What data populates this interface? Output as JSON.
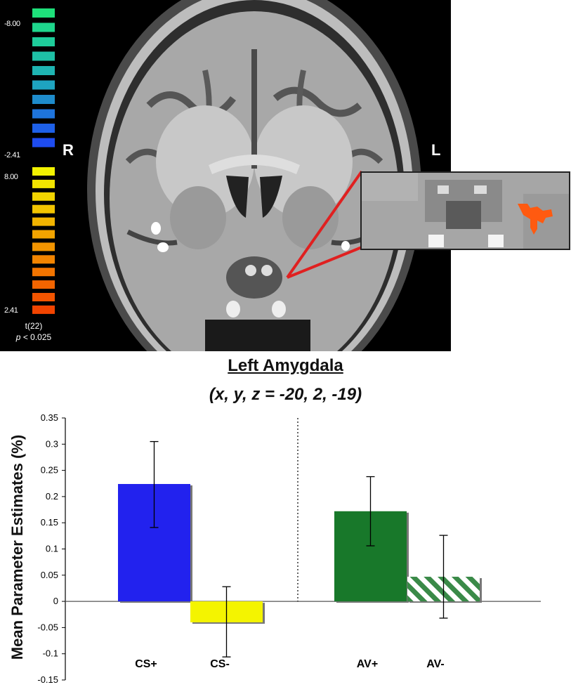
{
  "figure": {
    "colorbar": {
      "negative_max_label": "-8.00",
      "negative_threshold_label": "-2.41",
      "positive_max_label": "8.00",
      "positive_threshold_label": "2.41",
      "stat_label": "t(22)",
      "p_symbol": "p",
      "p_value_text": " < 0.025",
      "negative_colors": [
        "#1ee07a",
        "#1ed68c",
        "#1ecc9a",
        "#1ec0a6",
        "#1eb4b2",
        "#1ea4c0",
        "#1e8ccc",
        "#1e74dc",
        "#1e60e8",
        "#1e4cf0"
      ],
      "positive_colors": [
        "#f2f200",
        "#f2e400",
        "#f2d400",
        "#f2c400",
        "#f2b400",
        "#f2a400",
        "#f29400",
        "#f28400",
        "#f27400",
        "#f26400",
        "#f25400",
        "#f24400"
      ]
    },
    "orientation": {
      "right": "R",
      "left": "L"
    },
    "highlight_color": "#ff5a10",
    "callout_line_color": "#e02020"
  },
  "chart_data": {
    "type": "bar",
    "title": "Left Amygdala",
    "subtitle": "(x, y, z = -20, 2, -19)",
    "ylabel": "Mean Parameter Estimates (%)",
    "ylim": [
      -0.15,
      0.35
    ],
    "yticks": [
      -0.15,
      -0.1,
      -0.05,
      0,
      0.05,
      0.1,
      0.15,
      0.2,
      0.25,
      0.3,
      0.35
    ],
    "ytick_labels": [
      "-0.15",
      "-0.1",
      "-0.05",
      "0",
      "0.05",
      "0.1",
      "0.15",
      "0.2",
      "0.25",
      "0.3",
      "0.35"
    ],
    "categories": [
      "CS+",
      "CS-",
      "AV+",
      "AV-"
    ],
    "values": [
      0.224,
      -0.04,
      0.172,
      0.047
    ],
    "error_low": [
      0.141,
      -0.106,
      0.106,
      -0.032
    ],
    "error_high": [
      0.305,
      0.028,
      0.238,
      0.126
    ],
    "colors": [
      "#2222ee",
      "#f4f400",
      "#18782a",
      "hatched-green"
    ],
    "group_divider": "dotted vertical line between CS- and AV+",
    "grid": false
  }
}
